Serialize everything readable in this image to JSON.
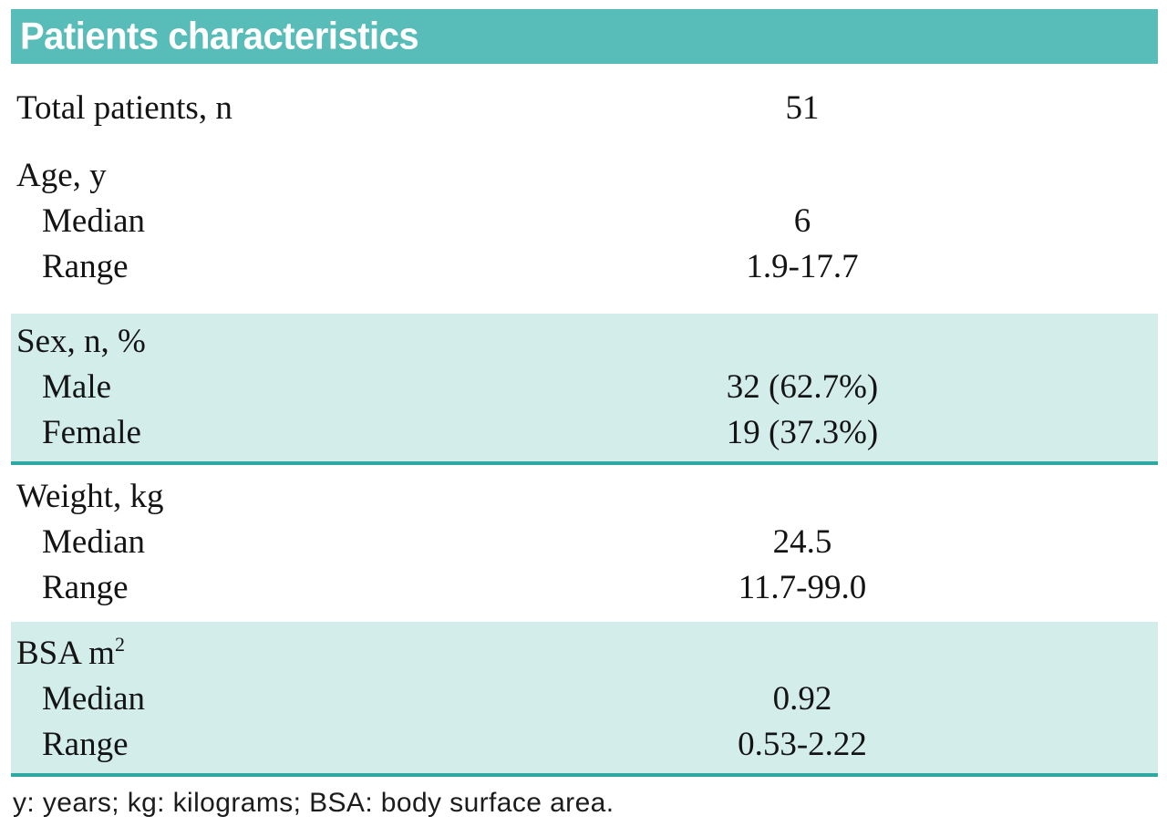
{
  "colors": {
    "header_teal": "#58bdb9",
    "row_shaded": "#d3edeb",
    "divider_teal": "#2fa7a3"
  },
  "table": {
    "header": "Patients characteristics",
    "sections": [
      {
        "name": "total-patients",
        "shaded": false,
        "rows": [
          {
            "label": "Total patients, n",
            "value": "51"
          }
        ]
      },
      {
        "name": "age",
        "shaded": false,
        "rows": [
          {
            "label": "Age, y"
          },
          {
            "label": "Median",
            "value": "6"
          },
          {
            "label": "Range",
            "value": "1.9-17.7"
          }
        ]
      },
      {
        "name": "sex",
        "shaded": true,
        "rows": [
          {
            "label": "Sex, n, %"
          },
          {
            "label": "Male",
            "value": "32 (62.7%)"
          },
          {
            "label": "Female",
            "value": "19 (37.3%)"
          }
        ]
      },
      {
        "name": "weight",
        "shaded": false,
        "rows": [
          {
            "label": "Weight, kg"
          },
          {
            "label": "Median",
            "value": "24.5"
          },
          {
            "label": "Range",
            "value": "11.7-99.0"
          }
        ]
      },
      {
        "name": "bsa",
        "shaded": true,
        "rows": [
          {
            "label": "BSA m",
            "label_sup": "2"
          },
          {
            "label": "Median",
            "value": "0.92"
          },
          {
            "label": "Range",
            "value": "0.53-2.22"
          }
        ]
      }
    ],
    "footnote": "y: years; kg: kilograms; BSA: body surface area."
  }
}
